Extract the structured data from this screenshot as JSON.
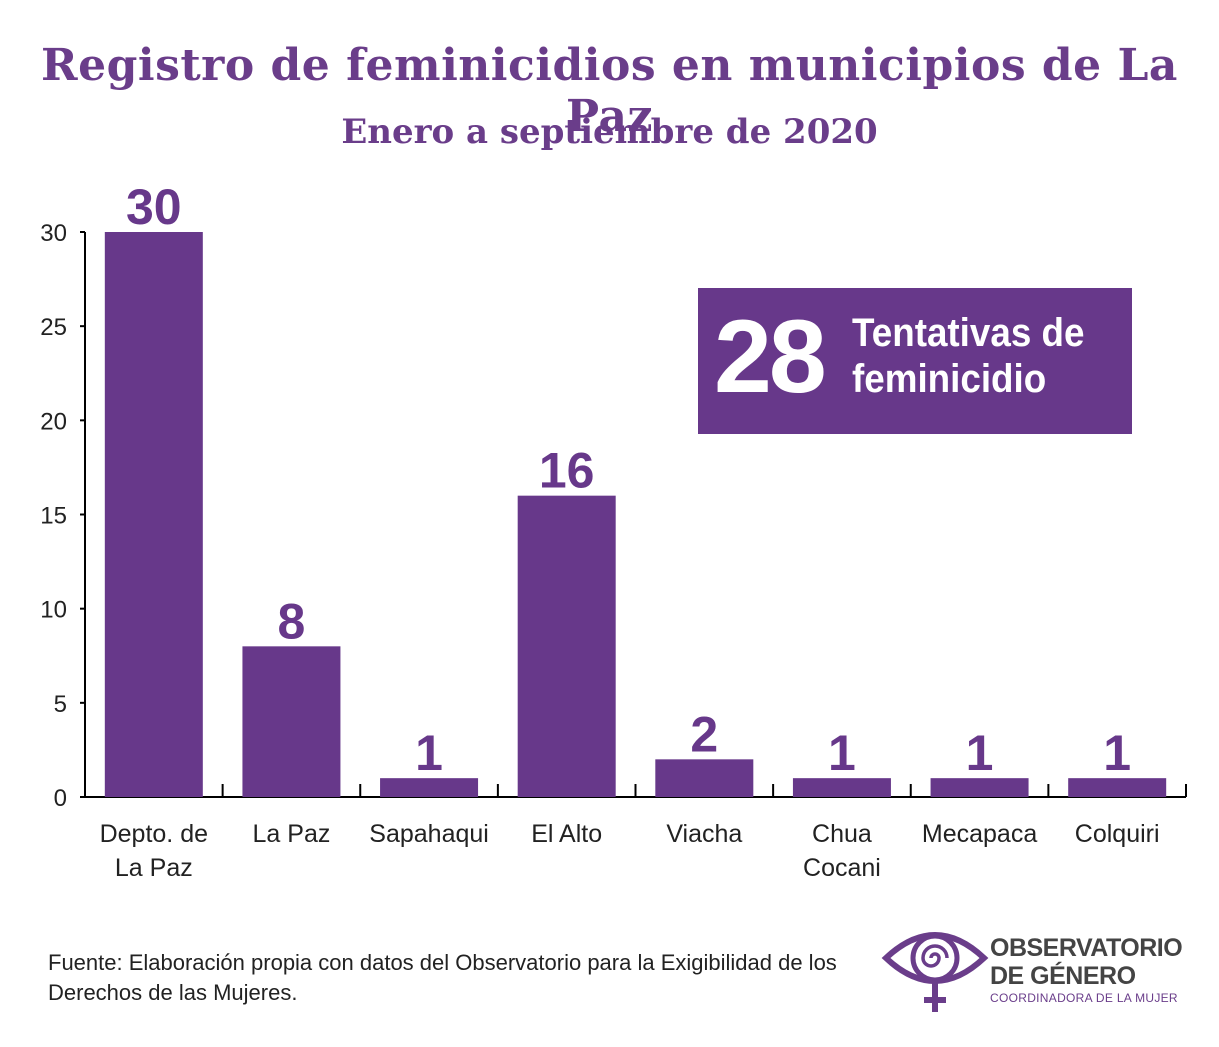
{
  "header": {
    "title": "Registro de feminicidios en municipios de La Paz",
    "subtitle": "Enero a septiembre de 2020"
  },
  "callout": {
    "number": "28",
    "text": "Tentativas de feminicidio"
  },
  "source": "Fuente: Elaboración propia con datos del Observatorio para la Exigibilidad de los Derechos de las Mujeres.",
  "logo": {
    "line1": "OBSERVATORIO",
    "line2": "DE GÉNERO",
    "line3": "COORDINADORA DE LA MUJER",
    "icon": "eye-venus-icon"
  },
  "colors": {
    "bar": "#67388a",
    "text_accent": "#6a3d8a",
    "axis": "#000000"
  },
  "chart_data": {
    "type": "bar",
    "categories": [
      "Depto. de La Paz",
      "La Paz",
      "Sapahaqui",
      "El Alto",
      "Viacha",
      "Chua Cocani",
      "Mecapaca",
      "Colquiri"
    ],
    "category_lines": [
      [
        "Depto. de",
        "La Paz"
      ],
      [
        "La Paz"
      ],
      [
        "Sapahaqui"
      ],
      [
        "El Alto"
      ],
      [
        "Viacha"
      ],
      [
        "Chua",
        "Cocani"
      ],
      [
        "Mecapaca"
      ],
      [
        "Colquiri"
      ]
    ],
    "values": [
      30,
      8,
      1,
      16,
      2,
      1,
      1,
      1
    ],
    "yticks": [
      0,
      5,
      10,
      15,
      20,
      25,
      30
    ],
    "ylim": [
      0,
      30
    ],
    "title": "Registro de feminicidios en municipios de La Paz",
    "subtitle": "Enero a septiembre de 2020",
    "xlabel": "",
    "ylabel": "",
    "grid": false,
    "data_labels": true
  }
}
